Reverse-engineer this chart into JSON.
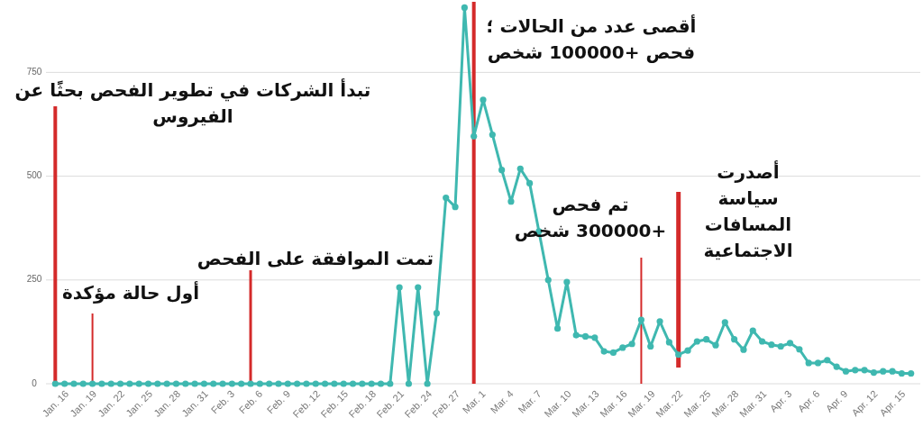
{
  "chart_data": {
    "type": "line",
    "grid": "y",
    "marker": "circle",
    "x": [
      "--01-16",
      "--01-17",
      "--01-18",
      "--01-19",
      "--01-20",
      "--01-21",
      "--01-22",
      "--01-23",
      "--01-24",
      "--01-25",
      "--01-26",
      "--01-27",
      "--01-28",
      "--01-29",
      "--01-30",
      "--01-31",
      "--02-01",
      "--02-02",
      "--02-03",
      "--02-04",
      "--02-05",
      "--02-06",
      "--02-07",
      "--02-08",
      "--02-09",
      "--02-10",
      "--02-11",
      "--02-12",
      "--02-13",
      "--02-14",
      "--02-15",
      "--02-16",
      "--02-17",
      "--02-18",
      "--02-19",
      "--02-20",
      "--02-21",
      "--02-22",
      "--02-23",
      "--02-24",
      "--02-25",
      "--02-26",
      "--02-27",
      "--02-28",
      "--02-29",
      "--03-01",
      "--03-02",
      "--03-03",
      "--03-04",
      "--03-05",
      "--03-06",
      "--03-07",
      "--03-08",
      "--03-09",
      "--03-10",
      "--03-11",
      "--03-12",
      "--03-13",
      "--03-14",
      "--03-15",
      "--03-16",
      "--03-17",
      "--03-18",
      "--03-19",
      "--03-20",
      "--03-21",
      "--03-22",
      "--03-23",
      "--03-24",
      "--03-25",
      "--03-26",
      "--03-27",
      "--03-28",
      "--03-29",
      "--03-30",
      "--03-31",
      "--04-01",
      "--04-02",
      "--04-03",
      "--04-04",
      "--04-05",
      "--04-06",
      "--04-07",
      "--04-08",
      "--04-09",
      "--04-10",
      "--04-11",
      "--04-12",
      "--04-13",
      "--04-14",
      "--04-15",
      "--04-16",
      "--04-17"
    ],
    "series": [
      {
        "color": "#3fb8b0",
        "values": [
          0,
          0,
          0,
          0,
          0,
          0,
          0,
          0,
          0,
          0,
          0,
          0,
          0,
          0,
          0,
          0,
          0,
          0,
          0,
          0,
          0,
          0,
          0,
          0,
          0,
          0,
          0,
          0,
          0,
          0,
          0,
          0,
          0,
          0,
          0,
          0,
          0,
          232,
          0,
          232,
          0,
          170,
          448,
          426,
          906,
          596,
          684,
          600,
          515,
          439,
          518,
          483,
          367,
          250,
          133,
          245,
          117,
          114,
          111,
          78,
          75,
          87,
          96,
          154,
          90,
          150,
          100,
          70,
          80,
          102,
          107,
          93,
          148,
          107,
          82,
          128,
          102,
          94,
          90,
          98,
          83,
          50,
          50,
          57,
          41,
          30,
          33,
          33,
          27,
          30,
          30,
          25,
          25
        ]
      }
    ],
    "xlim": [
      "--01-15",
      "--04-18"
    ],
    "xticks": [
      {
        "value": "--01-16",
        "label": "Jan. 16"
      },
      {
        "value": "--01-19",
        "label": "Jan. 19"
      },
      {
        "value": "--01-22",
        "label": "Jan. 22"
      },
      {
        "value": "--01-25",
        "label": "Jan. 25"
      },
      {
        "value": "--01-28",
        "label": "Jan. 28"
      },
      {
        "value": "--01-31",
        "label": "Jan. 31"
      },
      {
        "value": "--02-03",
        "label": "Feb. 3"
      },
      {
        "value": "--02-06",
        "label": "Feb. 6"
      },
      {
        "value": "--02-09",
        "label": "Feb. 9"
      },
      {
        "value": "--02-12",
        "label": "Feb. 12"
      },
      {
        "value": "--02-15",
        "label": "Feb. 15"
      },
      {
        "value": "--02-18",
        "label": "Feb. 18"
      },
      {
        "value": "--02-21",
        "label": "Feb. 21"
      },
      {
        "value": "--02-24",
        "label": "Feb. 24"
      },
      {
        "value": "--02-27",
        "label": "Feb. 27"
      },
      {
        "value": "--03-01",
        "label": "Mar. 1"
      },
      {
        "value": "--03-04",
        "label": "Mar. 4"
      },
      {
        "value": "--03-07",
        "label": "Mar. 7"
      },
      {
        "value": "--03-10",
        "label": "Mar. 10"
      },
      {
        "value": "--03-13",
        "label": "Mar. 13"
      },
      {
        "value": "--03-16",
        "label": "Mar. 16"
      },
      {
        "value": "--03-19",
        "label": "Mar. 19"
      },
      {
        "value": "--03-22",
        "label": "Mar. 22"
      },
      {
        "value": "--03-25",
        "label": "Mar. 25"
      },
      {
        "value": "--03-28",
        "label": "Mar. 28"
      },
      {
        "value": "--03-31",
        "label": "Mar. 31"
      },
      {
        "value": "--04-03",
        "label": "Apr. 3"
      },
      {
        "value": "--04-06",
        "label": "Apr. 6"
      },
      {
        "value": "--04-09",
        "label": "Apr. 9"
      },
      {
        "value": "--04-12",
        "label": "Apr. 12"
      },
      {
        "value": "--04-15",
        "label": "Apr. 15"
      }
    ],
    "ylim": [
      0,
      920
    ],
    "yticks": [
      0,
      250,
      500,
      750
    ],
    "ref_lines": [
      {
        "axis": "x",
        "value": "--01-16",
        "label": "تبدأ الشركات في تطوير الفحص بحثًا عن الفيروس",
        "color": "#d42a2a"
      },
      {
        "axis": "x",
        "value": "--01-20",
        "label": "أول حالة مؤكدة",
        "color": "#d42a2a"
      },
      {
        "axis": "x",
        "value": "--02-06",
        "label": "تمت الموافقة على الفحص",
        "color": "#d42a2a"
      },
      {
        "axis": "x",
        "value": "--03-01",
        "label": "أقصى عدد من الحالات ؛ فحص +100000 شخص",
        "color": "#d42a2a"
      },
      {
        "axis": "x",
        "value": "--03-19",
        "label": "تم فحص +300000 شخص",
        "color": "#d42a2a"
      },
      {
        "axis": "x",
        "value": "--03-23",
        "label": "أصدرت سياسة المسافات الاجتماعية",
        "color": "#d42a2a"
      }
    ]
  }
}
